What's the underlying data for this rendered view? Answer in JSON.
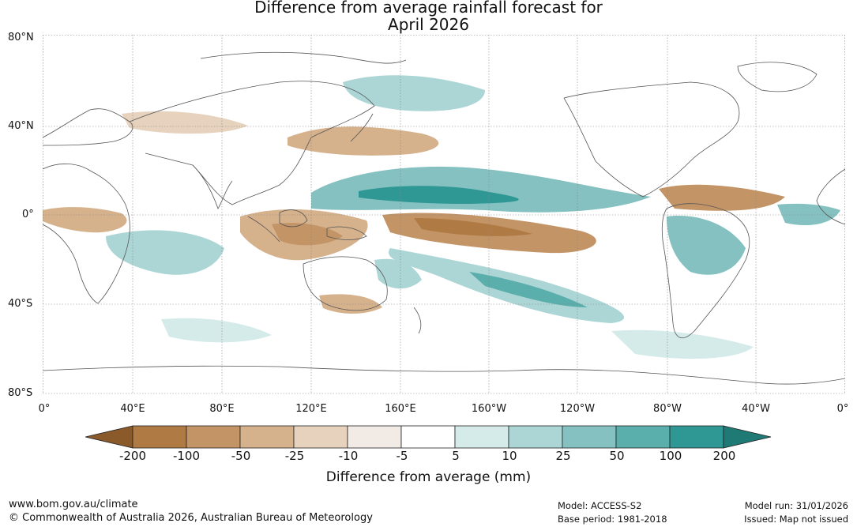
{
  "title": {
    "line1": "Difference from average rainfall forecast for",
    "line2": "April 2026"
  },
  "lat_labels": [
    "80°N",
    "40°N",
    "0°",
    "40°S",
    "80°S"
  ],
  "lon_labels": [
    "0°",
    "40°E",
    "80°E",
    "120°E",
    "160°E",
    "160°W",
    "120°W",
    "80°W",
    "40°W",
    "0°"
  ],
  "colorbar": {
    "title": "Difference from average (mm)",
    "tick_labels": [
      "-200",
      "-100",
      "-50",
      "-25",
      "-10",
      "-5",
      "5",
      "10",
      "25",
      "50",
      "100",
      "200"
    ],
    "colors": [
      "#8b5a2b",
      "#b07a45",
      "#c39466",
      "#d5b18c",
      "#e6d2bd",
      "#f2ebe5",
      "#ffffff",
      "#d5ebea",
      "#acd6d5",
      "#84c1c0",
      "#5aaeac",
      "#2f9894",
      "#1f7a76"
    ]
  },
  "footer": {
    "url": "www.bom.gov.au/climate",
    "copyright": "© Commonwealth of Australia 2026, Australian Bureau of Meteorology",
    "model": "Model: ACCESS-S2",
    "base_period": "Base period: 1981-2018",
    "model_run": "Model run: 31/01/2026",
    "issued": "Issued: Map not issued"
  }
}
